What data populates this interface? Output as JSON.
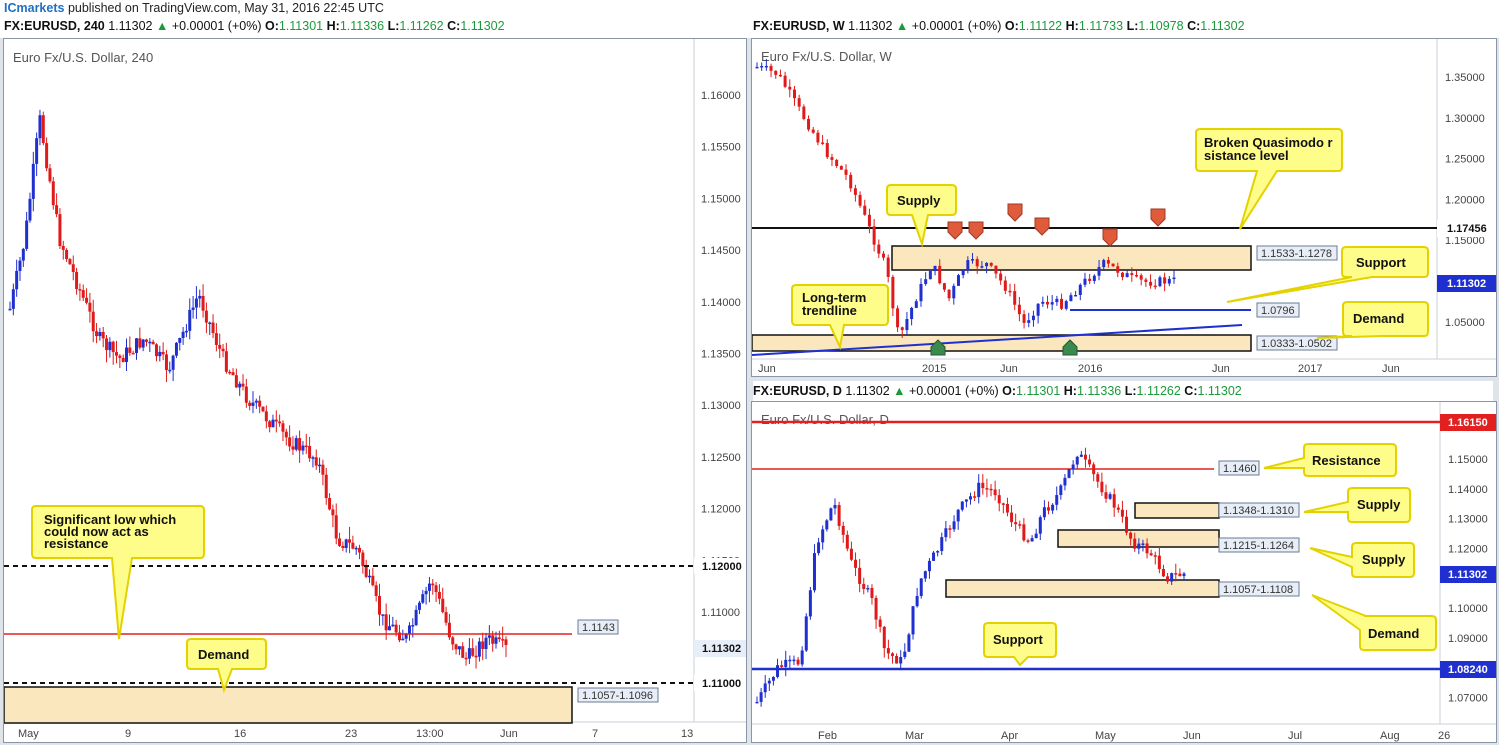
{
  "header": {
    "brand": "ICmarkets",
    "published": "published on TradingView.com, May 31, 2016 22:45 UTC",
    "symbol_4h": "FX:EURUSD, 240",
    "price": "1.11302",
    "change": "+0.00001 (+0%)",
    "o_label": "O:",
    "o": "1.11301",
    "h_label": "H:",
    "h": "1.11336",
    "l_label": "L:",
    "l": "1.11262",
    "c_label": "C:",
    "c": "1.11302"
  },
  "weekly_header": {
    "symbol": "FX:EURUSD, W",
    "price": "1.11302",
    "change": "+0.00001 (+0%)",
    "o": "1.11122",
    "h": "1.11733",
    "l": "1.10978",
    "c": "1.11302"
  },
  "daily_header": {
    "symbol": "FX:EURUSD, D",
    "price": "1.11302",
    "change": "+0.00001 (+0%)",
    "o": "1.11301",
    "h": "1.11336",
    "l": "1.11262",
    "c": "1.11302"
  },
  "chart_4h": {
    "title": "Euro Fx/U.S. Dollar, 240",
    "y_ticks": [
      "1.16000",
      "1.15500",
      "1.15000",
      "1.14500",
      "1.14000",
      "1.13500",
      "1.13000",
      "1.12500",
      "1.12000",
      "1.11500",
      "1.11000"
    ],
    "x_ticks": [
      "May",
      "9",
      "16",
      "23",
      "13:00",
      "Jun",
      "7",
      "13"
    ],
    "level_1143": "1.1143",
    "level_112": "1.12000",
    "level_111": "1.11000",
    "price_tag": "1.11302",
    "zone_label": "1.1057-1.1096",
    "note_significant": "Significant low which could now act as resistance",
    "note_demand": "Demand"
  },
  "chart_w": {
    "title": "Euro Fx/U.S. Dollar, W",
    "y_ticks": [
      "1.35000",
      "1.30000",
      "1.25000",
      "1.20000",
      "1.15000",
      "1.10000",
      "1.05000"
    ],
    "x_ticks": [
      "Jun",
      "2015",
      "Jun",
      "2016",
      "Jun",
      "2017",
      "Jun"
    ],
    "level_17456": "1.17456",
    "price_tag": "1.11302",
    "supply_zone": "1.1533-1.1278",
    "support_level": "1.0796",
    "demand_zone": "1.0333-1.0502",
    "note_bqm": "Broken Quasimodo resistance level",
    "note_supply": "Supply",
    "note_support": "Support",
    "note_trend": "Long-term trendline",
    "note_demand": "Demand"
  },
  "chart_d": {
    "title": "Euro Fx/U.S. Dollar, D",
    "y_ticks": [
      "1.15000",
      "1.14000",
      "1.13000",
      "1.12000",
      "1.11000",
      "1.10000",
      "1.09000",
      "1.08000",
      "1.07000"
    ],
    "x_ticks": [
      "Feb",
      "Mar",
      "Apr",
      "May",
      "Jun",
      "Jul",
      "Aug",
      "26"
    ],
    "level_16150": "1.16150",
    "level_1460": "1.1460",
    "supply1": "1.1348-1.1310",
    "supply2": "1.1215-1.1264",
    "demand": "1.1057-1.1108",
    "price_tag": "1.11302",
    "support_tag": "1.08240",
    "note_resistance": "Resistance",
    "note_supply1": "Supply",
    "note_supply2": "Supply",
    "note_demand": "Demand",
    "note_support": "Support"
  },
  "colors": {
    "bull": "#1f2fd0",
    "bear": "#e01a1a",
    "zone": "#fbe7bd",
    "callout": "#fffd8a",
    "callout_border": "#e4d200"
  }
}
